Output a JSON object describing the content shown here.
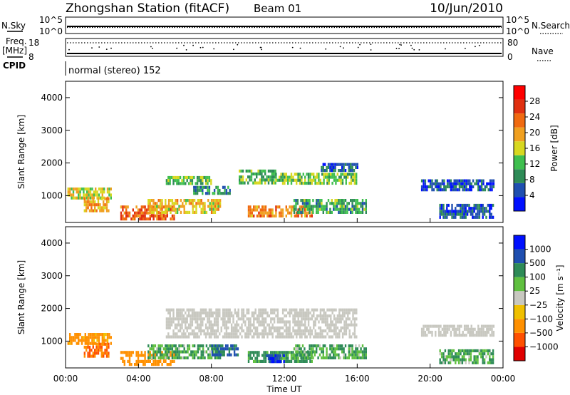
{
  "header": {
    "station": "Zhongshan Station (fitACF)",
    "beam": "Beam 01",
    "date": "10/Jun/2010"
  },
  "info_panel": {
    "nsky_label": "N.Sky",
    "nsky_ticks": [
      "10^5",
      "10^0"
    ],
    "nsearch_label": "N.Search",
    "nsearch_ticks": [
      "10^5",
      "10^0"
    ],
    "freq_label_1": "Freq.",
    "freq_label_2": "[MHz]",
    "freq_ticks": [
      "18",
      "8"
    ],
    "nave_label": "Nave",
    "nave_ticks": [
      "80",
      "0"
    ],
    "cpid_label": "CPID",
    "cpid_text": "normal (stereo) 152"
  },
  "colors": {
    "power": [
      "#0010ff",
      "#1f4fb0",
      "#2e8b57",
      "#3fbf4f",
      "#d8d820",
      "#f0a020",
      "#f06a10",
      "#e03010",
      "#ff0000"
    ],
    "velocity": [
      "#e00000",
      "#ff5000",
      "#ff9000",
      "#f0c000",
      "#c8c8c0",
      "#60c040",
      "#2e8b57",
      "#1f4fb0",
      "#0010ff"
    ],
    "ground": "#c8c8c0"
  },
  "chart_data": [
    {
      "type": "heatmap",
      "name": "Power",
      "xlabel": "",
      "ylabel": "Slant Range [km]",
      "x_range_hours": [
        0,
        24
      ],
      "ylim": [
        180,
        4500
      ],
      "y_ticks": [
        "1000",
        "2000",
        "3000",
        "4000"
      ],
      "colorbar": {
        "label": "Power [dB]",
        "ticks": [
          "4",
          "8",
          "12",
          "16",
          "20",
          "24",
          "28"
        ],
        "range": [
          0,
          32
        ]
      },
      "regions": [
        {
          "t": [
            0.1,
            2.5
          ],
          "r": [
            950,
            1250
          ],
          "v": 18
        },
        {
          "t": [
            1.0,
            2.4
          ],
          "r": [
            500,
            950
          ],
          "v": 22
        },
        {
          "t": [
            3.0,
            6.0
          ],
          "r": [
            300,
            700
          ],
          "v": 27
        },
        {
          "t": [
            4.5,
            8.5
          ],
          "r": [
            500,
            900
          ],
          "v": 20
        },
        {
          "t": [
            5.5,
            8.0
          ],
          "r": [
            1400,
            1600
          ],
          "v": 14
        },
        {
          "t": [
            7.0,
            9.0
          ],
          "r": [
            1100,
            1300
          ],
          "v": 10
        },
        {
          "t": [
            9.5,
            11.5
          ],
          "r": [
            1400,
            1800
          ],
          "v": 13
        },
        {
          "t": [
            10.0,
            13.5
          ],
          "r": [
            350,
            700
          ],
          "v": 24
        },
        {
          "t": [
            11.5,
            16.0
          ],
          "r": [
            1400,
            1700
          ],
          "v": 15
        },
        {
          "t": [
            12.5,
            16.5
          ],
          "r": [
            500,
            900
          ],
          "v": 12
        },
        {
          "t": [
            14.0,
            16.0
          ],
          "r": [
            1800,
            2000
          ],
          "v": 7
        },
        {
          "t": [
            19.5,
            23.5
          ],
          "r": [
            1200,
            1500
          ],
          "v": 6
        },
        {
          "t": [
            20.5,
            23.5
          ],
          "r": [
            350,
            750
          ],
          "v": 7
        }
      ]
    },
    {
      "type": "heatmap",
      "name": "Velocity",
      "xlabel": "Time UT",
      "ylabel": "Slant Range [km]",
      "x_range_hours": [
        0,
        24
      ],
      "ylim": [
        180,
        4500
      ],
      "x_ticks": [
        "00:00",
        "04:00",
        "08:00",
        "12:00",
        "16:00",
        "20:00",
        "00:00"
      ],
      "y_ticks": [
        "1000",
        "2000",
        "3000",
        "4000"
      ],
      "colorbar": {
        "label": "Velocity [m s⁻¹]",
        "ticks": [
          "1000",
          "500",
          "100",
          "25",
          "−25",
          "−100",
          "−500",
          "−1000"
        ]
      },
      "regions": [
        {
          "t": [
            0.1,
            2.5
          ],
          "r": [
            950,
            1250
          ],
          "v": -100
        },
        {
          "t": [
            1.0,
            2.4
          ],
          "r": [
            500,
            950
          ],
          "v": -300
        },
        {
          "t": [
            3.0,
            6.0
          ],
          "r": [
            300,
            700
          ],
          "v": -150
        },
        {
          "t": [
            4.5,
            8.5
          ],
          "r": [
            500,
            900
          ],
          "v": 60
        },
        {
          "t": [
            5.5,
            16.0
          ],
          "r": [
            1100,
            2000
          ],
          "v": 0,
          "ground": true
        },
        {
          "t": [
            8.0,
            9.5
          ],
          "r": [
            550,
            900
          ],
          "v": 300
        },
        {
          "t": [
            10.0,
            13.5
          ],
          "r": [
            350,
            700
          ],
          "v": 80
        },
        {
          "t": [
            11.0,
            12.0
          ],
          "r": [
            400,
            600
          ],
          "v": 600
        },
        {
          "t": [
            12.5,
            16.5
          ],
          "r": [
            500,
            900
          ],
          "v": 60
        },
        {
          "t": [
            19.5,
            23.5
          ],
          "r": [
            1200,
            1500
          ],
          "v": 0,
          "ground": true
        },
        {
          "t": [
            20.5,
            23.5
          ],
          "r": [
            350,
            750
          ],
          "v": 60
        }
      ]
    }
  ]
}
